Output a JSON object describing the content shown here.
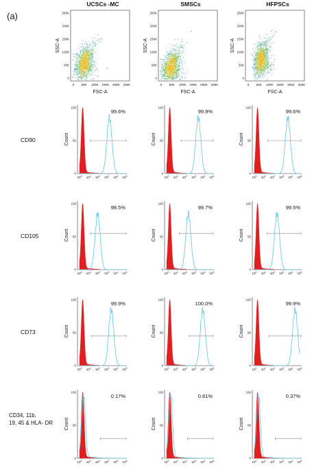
{
  "panel_label": "(a)",
  "columns": [
    "UCSCs -MC",
    "SMSCs",
    "HFPSCs"
  ],
  "scatter": {
    "x_label": "FSC-A",
    "y_label": "SSC-A",
    "x_ticks": [
      "0",
      "50K",
      "100K",
      "150K",
      "200K",
      "250K"
    ],
    "y_ticks": [
      "0",
      "50K",
      "100K",
      "150K",
      "200K",
      "250K"
    ]
  },
  "histogram": {
    "y_label": "Count",
    "y_ticks": [
      "0",
      "50",
      "100"
    ],
    "x_tick_base": "10",
    "x_tick_exponents": [
      "0",
      "1",
      "2",
      "3",
      "4",
      "5"
    ]
  },
  "rows": [
    {
      "label": "CD90",
      "percentages": [
        "99.6%",
        "99.9%",
        "99.6%"
      ]
    },
    {
      "label": "CD105",
      "percentages": [
        "98.5%",
        "99.7%",
        "99.5%"
      ]
    },
    {
      "label": "CD73",
      "percentages": [
        "99.9%",
        "100.0%",
        "99.9%"
      ]
    },
    {
      "label": "CD34, 11b, 19, 45 & HLA- DR",
      "percentages": [
        "0.17%",
        "0.81%",
        "0.37%"
      ]
    }
  ]
}
